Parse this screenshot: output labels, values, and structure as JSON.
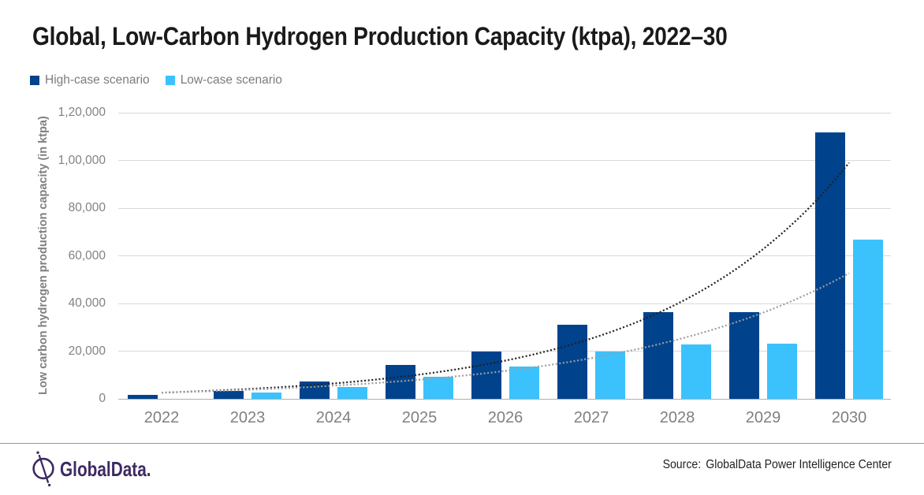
{
  "title": "Global, Low-Carbon Hydrogen Production Capacity (ktpa), 2022–30",
  "legend": [
    {
      "label": "High-case scenario",
      "color": "#00438c"
    },
    {
      "label": "Low-case scenario",
      "color": "#3bc2fc"
    }
  ],
  "chart_data": {
    "type": "bar",
    "title": "Global, Low-Carbon Hydrogen Production Capacity (ktpa), 2022–30",
    "categories": [
      "2022",
      "2023",
      "2024",
      "2025",
      "2026",
      "2027",
      "2028",
      "2029",
      "2030"
    ],
    "series": [
      {
        "name": "High-case scenario",
        "color": "#00438c",
        "values": [
          1600,
          3400,
          7200,
          14200,
          19800,
          31200,
          36400,
          36500,
          111600
        ]
      },
      {
        "name": "Low-case scenario",
        "color": "#3bc2fc",
        "values": [
          0,
          2800,
          5100,
          9300,
          13400,
          19900,
          22900,
          23100,
          66700
        ]
      }
    ],
    "trendlines": [
      {
        "name": "High-case exponential trend",
        "color": "#1f1f1f",
        "start": 2600,
        "end": 99000
      },
      {
        "name": "Low-case exponential trend",
        "color": "#9e9e9e",
        "start": 2600,
        "end": 52700
      }
    ],
    "ylabel": "Low carbon hydrogen production capacity (in ktpa)",
    "ylim": [
      0,
      120000
    ],
    "ytick_step": 20000,
    "ytick_labels": [
      "0",
      "20,000",
      "40,000",
      "60,000",
      "80,000",
      "1,00,000",
      "1,20,000"
    ],
    "grid": true,
    "legend_position": "top-left"
  },
  "footer": {
    "source_label": "Source:",
    "source_text": "GlobalData Power Intelligence Center",
    "brand": "GlobalData."
  }
}
